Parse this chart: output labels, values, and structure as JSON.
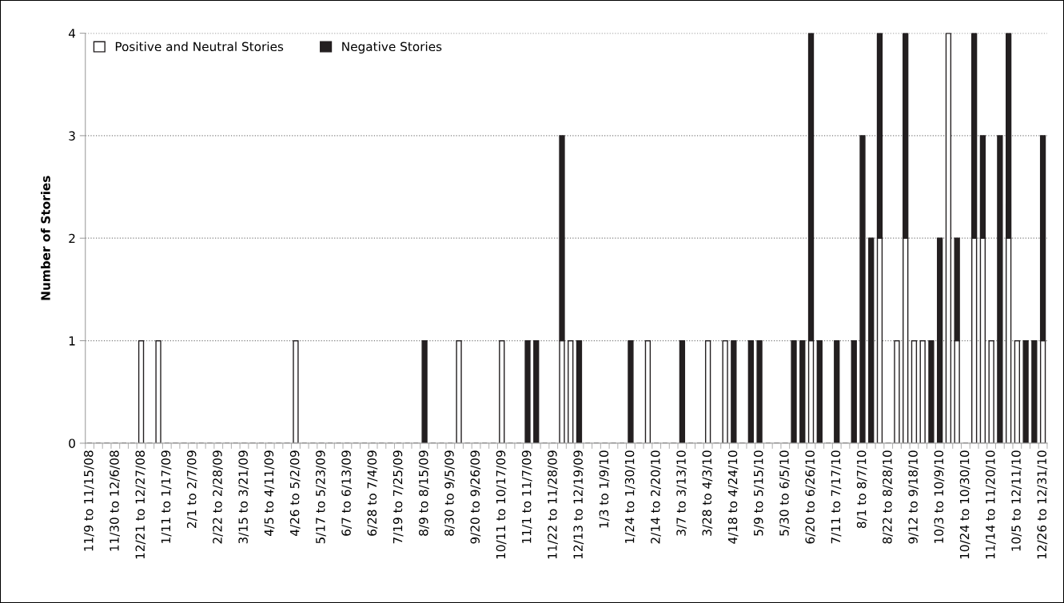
{
  "chart_data": {
    "type": "bar",
    "stacked": true,
    "ylabel": "Number of Stories",
    "categories": [
      "11/9 to 11/15/08",
      null,
      null,
      "11/30 to 12/6/08",
      null,
      null,
      "12/21 to 12/27/08",
      null,
      null,
      "1/11 to 1/17/09",
      null,
      null,
      "2/1 to 2/7/09",
      null,
      null,
      "2/22 to 2/28/09",
      null,
      null,
      "3/15 to 3/21/09",
      null,
      null,
      "4/5 to 4/11/09",
      null,
      null,
      "4/26 to 5/2/09",
      null,
      null,
      "5/17 to 5/23/09",
      null,
      null,
      "6/7 to 6/13/09",
      null,
      null,
      "6/28 to 7/4/09",
      null,
      null,
      "7/19 to 7/25/09",
      null,
      null,
      "8/9 to 8/15/09",
      null,
      null,
      "8/30 to 9/5/09",
      null,
      null,
      "9/20 to 9/26/09",
      null,
      null,
      "10/11 to 10/17/09",
      null,
      null,
      "11/1 to 11/7/09",
      null,
      null,
      "11/22 to 11/28/09",
      null,
      null,
      "12/13 to 12/19/09",
      null,
      null,
      "1/3 to 1/9/10",
      null,
      null,
      "1/24 to 1/30/10",
      null,
      null,
      "2/14 to 2/20/10",
      null,
      null,
      "3/7 to 3/13/10",
      null,
      null,
      "3/28 to 4/3/10",
      null,
      null,
      "4/18 to 4/24/10",
      null,
      null,
      "5/9 to 5/15/10",
      null,
      null,
      "5/30 to 6/5/10",
      null,
      null,
      "6/20 to 6/26/10",
      null,
      null,
      "7/11 to 7/17/10",
      null,
      null,
      "8/1 to 8/7/10",
      null,
      null,
      "8/22 to 8/28/10",
      null,
      null,
      "9/12 to 9/18/10",
      null,
      null,
      "10/3 to 10/9/10",
      null,
      null,
      "10/24 to 10/30/10",
      null,
      null,
      "11/14 to 11/20/10",
      null,
      null,
      "10/5 to 12/11/10",
      null,
      null,
      "12/26 to 12/31/10"
    ],
    "series": [
      {
        "name": "Positive and Neutral Stories",
        "color": "#ffffff",
        "values": [
          0,
          0,
          0,
          0,
          0,
          0,
          1,
          0,
          1,
          0,
          0,
          0,
          0,
          0,
          0,
          0,
          0,
          0,
          0,
          0,
          0,
          0,
          0,
          0,
          1,
          0,
          0,
          0,
          0,
          0,
          0,
          0,
          0,
          0,
          0,
          0,
          0,
          0,
          0,
          0,
          0,
          0,
          0,
          1,
          0,
          0,
          0,
          0,
          1,
          0,
          0,
          0,
          0,
          0,
          0,
          1,
          1,
          0,
          0,
          0,
          0,
          0,
          0,
          0,
          0,
          1,
          0,
          0,
          0,
          0,
          0,
          0,
          1,
          0,
          1,
          0,
          0,
          0,
          0,
          0,
          0,
          0,
          0,
          0,
          1,
          0,
          0,
          0,
          0,
          0,
          0,
          0,
          2,
          0,
          1,
          2,
          1,
          1,
          0,
          0,
          4,
          1,
          0,
          2,
          2,
          1,
          0,
          2,
          1,
          0,
          0,
          1
        ]
      },
      {
        "name": "Negative Stories",
        "color": "#231f20",
        "values": [
          0,
          0,
          0,
          0,
          0,
          0,
          0,
          0,
          0,
          0,
          0,
          0,
          0,
          0,
          0,
          0,
          0,
          0,
          0,
          0,
          0,
          0,
          0,
          0,
          0,
          0,
          0,
          0,
          0,
          0,
          0,
          0,
          0,
          0,
          0,
          0,
          0,
          0,
          0,
          1,
          0,
          0,
          0,
          0,
          0,
          0,
          0,
          0,
          0,
          0,
          0,
          1,
          1,
          0,
          0,
          2,
          0,
          1,
          0,
          0,
          0,
          0,
          0,
          1,
          0,
          0,
          0,
          0,
          0,
          1,
          0,
          0,
          0,
          0,
          0,
          1,
          0,
          1,
          1,
          0,
          0,
          0,
          1,
          1,
          3,
          1,
          0,
          1,
          0,
          1,
          3,
          2,
          2,
          0,
          0,
          2,
          0,
          0,
          1,
          2,
          0,
          1,
          0,
          2,
          1,
          0,
          3,
          2,
          0,
          1,
          1,
          2
        ]
      }
    ],
    "ylim": [
      0,
      4
    ],
    "yticks": [
      0,
      1,
      2,
      3,
      4
    ],
    "grid": "y",
    "legend": "top left"
  }
}
